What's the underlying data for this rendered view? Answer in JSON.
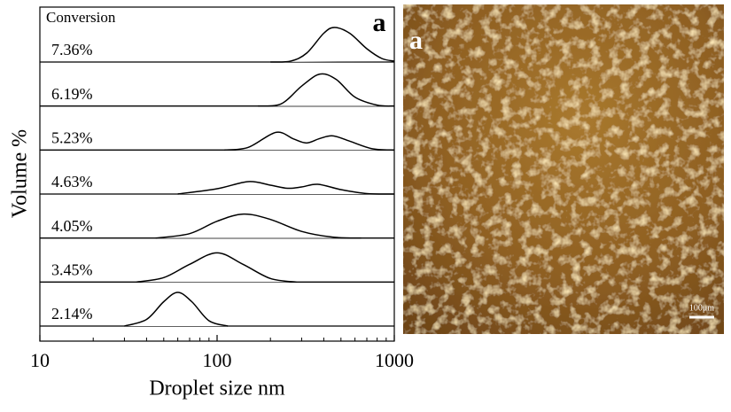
{
  "chart_data": {
    "type": "ridgeline",
    "panel_label": "a",
    "legend_title": "Conversion",
    "xlabel": "Droplet size  nm",
    "ylabel": "Volume  %",
    "xscale": "log",
    "xlim": [
      10,
      1000
    ],
    "xticks": [
      10,
      100,
      1000
    ],
    "ylim": [
      0,
      1
    ],
    "color": "#000000",
    "series": [
      {
        "name": "7.36%",
        "x": [
          200,
          260,
          320,
          400,
          460,
          560,
          700,
          850,
          1000
        ],
        "values": [
          0,
          0.02,
          0.2,
          0.65,
          0.78,
          0.65,
          0.3,
          0.08,
          0.02
        ]
      },
      {
        "name": "6.19%",
        "x": [
          170,
          230,
          300,
          380,
          470,
          600,
          800,
          1000
        ],
        "values": [
          0,
          0.05,
          0.45,
          0.72,
          0.6,
          0.2,
          0.02,
          0
        ]
      },
      {
        "name": "5.23%",
        "x": [
          110,
          150,
          215,
          270,
          320,
          380,
          450,
          560,
          750,
          1000
        ],
        "values": [
          0,
          0.06,
          0.4,
          0.25,
          0.16,
          0.26,
          0.32,
          0.2,
          0.03,
          0
        ]
      },
      {
        "name": "4.63%",
        "x": [
          60,
          100,
          150,
          200,
          250,
          300,
          370,
          500,
          700,
          1000
        ],
        "values": [
          0,
          0.12,
          0.28,
          0.2,
          0.13,
          0.16,
          0.22,
          0.1,
          0.01,
          0
        ]
      },
      {
        "name": "4.05%",
        "x": [
          45,
          70,
          100,
          141,
          200,
          300,
          450,
          650
        ],
        "values": [
          0,
          0.1,
          0.38,
          0.54,
          0.42,
          0.15,
          0.02,
          0
        ]
      },
      {
        "name": "3.45%",
        "x": [
          35,
          50,
          70,
          100,
          140,
          200,
          280
        ],
        "values": [
          0,
          0.1,
          0.4,
          0.66,
          0.4,
          0.08,
          0
        ]
      },
      {
        "name": "2.14%",
        "x": [
          30,
          40,
          50,
          60,
          72,
          90,
          115
        ],
        "values": [
          0,
          0.15,
          0.55,
          0.76,
          0.55,
          0.12,
          0
        ]
      }
    ]
  },
  "image": {
    "panel_label": "a",
    "scale_bar": "100μm"
  }
}
